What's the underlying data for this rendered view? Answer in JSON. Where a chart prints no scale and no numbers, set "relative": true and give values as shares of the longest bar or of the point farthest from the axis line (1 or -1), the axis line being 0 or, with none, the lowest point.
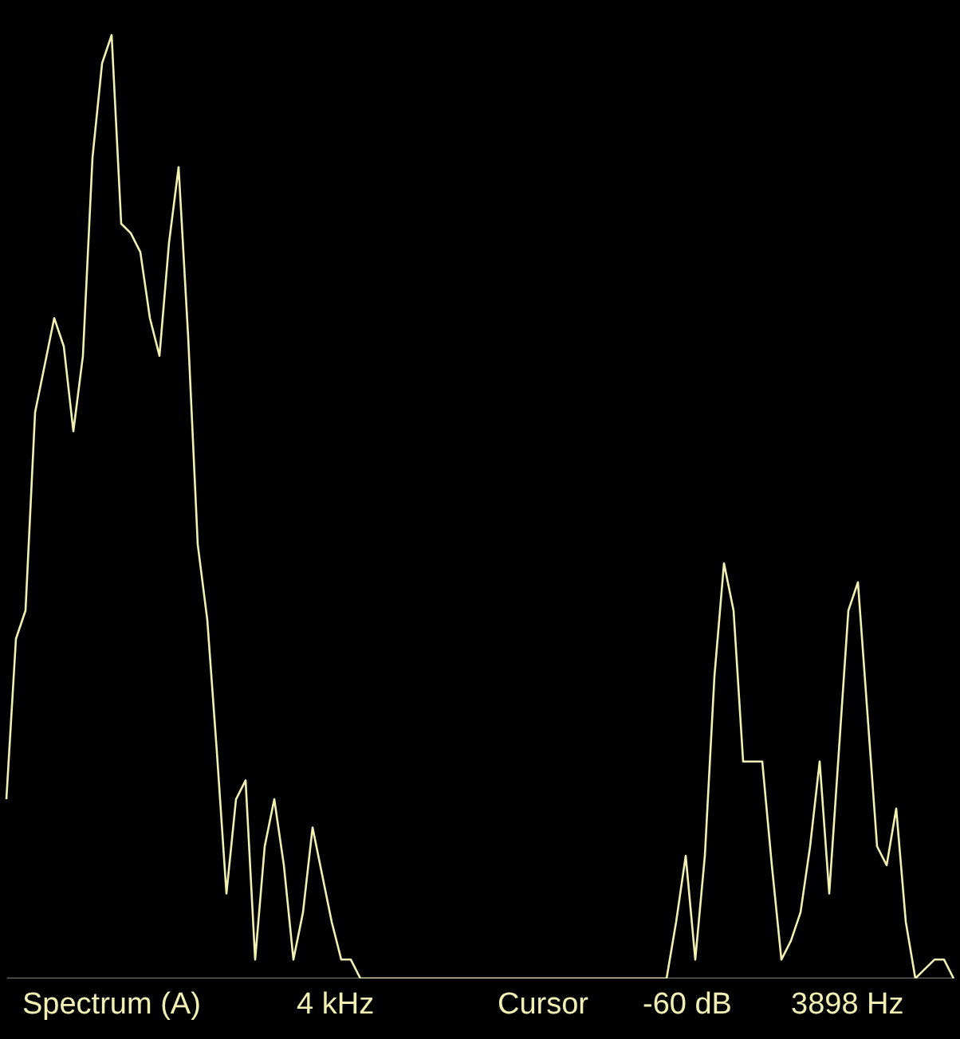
{
  "chart_data": {
    "type": "line",
    "relative": true,
    "categories": [
      null,
      null,
      null,
      null,
      null,
      null,
      null,
      null,
      null,
      null,
      null,
      null,
      null,
      null,
      null,
      null,
      null,
      null,
      null,
      null,
      null,
      null,
      null,
      null,
      null,
      null,
      null,
      null,
      null,
      null,
      null,
      null,
      null,
      null,
      null,
      null,
      null,
      null,
      null,
      null,
      null,
      null,
      null,
      null,
      null,
      null,
      null,
      null,
      null,
      null,
      null,
      null,
      null,
      null,
      null,
      null,
      null,
      null,
      null,
      null,
      null,
      null,
      null,
      null,
      null,
      null,
      null,
      null,
      null,
      null,
      null,
      null,
      null,
      null,
      null,
      null,
      null,
      null,
      null,
      null,
      null,
      null,
      null,
      null,
      null,
      null,
      null,
      null,
      null,
      null,
      null,
      null,
      null,
      null,
      null,
      null,
      null,
      null,
      null,
      null
    ],
    "series": [
      {
        "color": "#f2efb4",
        "values": [
          0.19,
          0.36,
          0.39,
          0.6,
          0.65,
          0.7,
          0.67,
          0.58,
          0.66,
          0.87,
          0.97,
          1,
          0.8,
          0.79,
          0.77,
          0.7,
          0.66,
          0.78,
          0.86,
          0.68,
          0.46,
          0.38,
          0.24,
          0.09,
          0.19,
          0.21,
          0.02,
          0.14,
          0.19,
          0.12,
          0.02,
          0.07,
          0.16,
          0.11,
          0.06,
          0.02,
          0.02,
          0,
          0,
          0,
          0,
          0,
          0,
          0,
          0,
          0,
          0,
          0,
          0,
          0,
          0,
          0,
          0,
          0,
          0,
          0,
          0,
          0,
          0,
          0,
          0,
          0,
          0,
          0,
          0,
          0,
          0,
          0,
          0,
          0,
          0.06,
          0.13,
          0.02,
          0.13,
          0.32,
          0.44,
          0.39,
          0.23,
          0.23,
          0.23,
          0.12,
          0.02,
          0.04,
          0.07,
          0.14,
          0.23,
          0.09,
          0.24,
          0.39,
          0.42,
          0.28,
          0.14,
          0.12,
          0.18,
          0.06,
          0,
          0.01,
          0.02,
          0.02,
          0
        ]
      }
    ],
    "annotations": [
      "Spectrum (A)",
      "4 kHz",
      "Cursor",
      "-60 dB",
      "3898 Hz"
    ]
  }
}
